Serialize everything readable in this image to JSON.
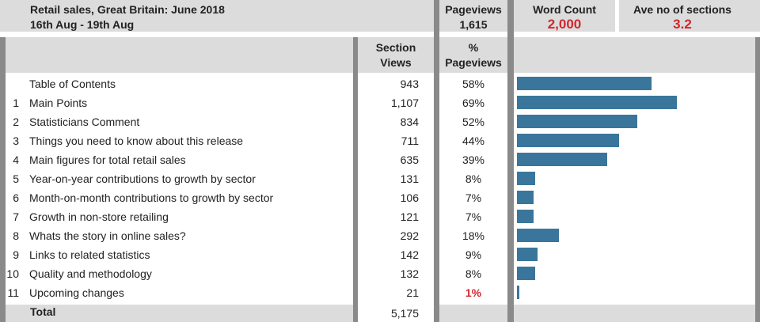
{
  "header": {
    "title": "Retail sales, Great Britain: June 2018",
    "date_range": "16th Aug - 19th Aug",
    "pageviews_label": "Pageviews",
    "pageviews_value": "1,615",
    "word_count_label": "Word Count",
    "word_count_value": "2,000",
    "sections_label": "Ave no of sections",
    "sections_value": "3.2"
  },
  "columns": {
    "section_views": "Section\nViews",
    "pct_pageviews": "%\nPageviews"
  },
  "colors": {
    "bar": "#3a769b",
    "alert": "#d0272d",
    "panel": "#dcdcdc",
    "divider": "#8a8a8a"
  },
  "chart_data": {
    "type": "table",
    "rows": [
      {
        "num": "",
        "section": "Table of Contents",
        "views": "943",
        "pct": "58%",
        "value": 58
      },
      {
        "num": "1",
        "section": "Main Points",
        "views": "1,107",
        "pct": "69%",
        "value": 69
      },
      {
        "num": "2",
        "section": "Statisticians Comment",
        "views": "834",
        "pct": "52%",
        "value": 52
      },
      {
        "num": "3",
        "section": "Things you need to know about this release",
        "views": "711",
        "pct": "44%",
        "value": 44
      },
      {
        "num": "4",
        "section": "Main figures for total retail sales",
        "views": "635",
        "pct": "39%",
        "value": 39
      },
      {
        "num": "5",
        "section": "Year-on-year contributions to growth by sector",
        "views": "131",
        "pct": "8%",
        "value": 8
      },
      {
        "num": "6",
        "section": "Month-on-month contributions to growth by sector",
        "views": "106",
        "pct": "7%",
        "value": 7
      },
      {
        "num": "7",
        "section": "Growth in non-store retailing",
        "views": "121",
        "pct": "7%",
        "value": 7
      },
      {
        "num": "8",
        "section": "Whats the story in online sales?",
        "views": "292",
        "pct": "18%",
        "value": 18
      },
      {
        "num": "9",
        "section": "Links to related statistics",
        "views": "142",
        "pct": "9%",
        "value": 9
      },
      {
        "num": "10",
        "section": "Quality and methodology",
        "views": "132",
        "pct": "8%",
        "value": 8
      },
      {
        "num": "11",
        "section": "Upcoming changes",
        "views": "21",
        "pct": "1%",
        "value": 1,
        "alert": true
      }
    ],
    "xlim": [
      0,
      100
    ],
    "total": {
      "label": "Total",
      "views": "5,175"
    }
  }
}
